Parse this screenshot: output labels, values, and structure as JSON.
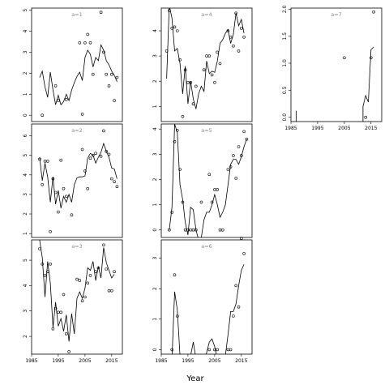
{
  "figure": {
    "xlabel": "Year"
  },
  "chart_data": [
    {
      "type": "scatter",
      "panel_label": "a=1",
      "xlim": [
        1985,
        2019
      ],
      "ylim": [
        -0.3,
        5.1
      ],
      "yticks": [
        0,
        1,
        2,
        3,
        4,
        5
      ],
      "xticks": [
        1985,
        1995,
        2005,
        2015
      ],
      "points": [
        [
          1989,
          0
        ],
        [
          1994,
          1.4
        ],
        [
          1995,
          0.7
        ],
        [
          1998,
          0.75
        ],
        [
          2003,
          3.45
        ],
        [
          2004,
          0.05
        ],
        [
          2005,
          3.45
        ],
        [
          2006,
          3.85
        ],
        [
          2007,
          3.45
        ],
        [
          2008,
          1.95
        ],
        [
          2011,
          4.9
        ],
        [
          2012,
          3.0
        ],
        [
          2013,
          1.95
        ],
        [
          2014,
          1.4
        ],
        [
          2015,
          1.95
        ],
        [
          2016,
          0.7
        ],
        [
          2017,
          1.8
        ]
      ],
      "line": [
        [
          1988,
          1.8
        ],
        [
          1989,
          2.1
        ],
        [
          1990,
          1.35
        ],
        [
          1991,
          0.85
        ],
        [
          1992,
          2.05
        ],
        [
          1993,
          1.2
        ],
        [
          1994,
          0.5
        ],
        [
          1995,
          0.95
        ],
        [
          1996,
          0.5
        ],
        [
          1997,
          0.65
        ],
        [
          1998,
          1.0
        ],
        [
          1999,
          0.7
        ],
        [
          2000,
          1.2
        ],
        [
          2001,
          1.55
        ],
        [
          2002,
          1.85
        ],
        [
          2003,
          2.05
        ],
        [
          2004,
          1.65
        ],
        [
          2005,
          2.75
        ],
        [
          2006,
          3.1
        ],
        [
          2007,
          2.9
        ],
        [
          2008,
          2.3
        ],
        [
          2009,
          2.75
        ],
        [
          2010,
          2.6
        ],
        [
          2011,
          3.35
        ],
        [
          2012,
          3.1
        ],
        [
          2013,
          2.6
        ],
        [
          2014,
          2.4
        ],
        [
          2015,
          2.1
        ],
        [
          2016,
          1.9
        ],
        [
          2017,
          1.6
        ]
      ]
    },
    {
      "type": "scatter",
      "panel_label": "a=2",
      "xlim": [
        1985,
        2019
      ],
      "ylim": [
        0.8,
        6.6
      ],
      "yticks": [
        1,
        2,
        3,
        4,
        5,
        6
      ],
      "xticks": [
        1985,
        1995,
        2005,
        2015
      ],
      "points": [
        [
          1988,
          4.8
        ],
        [
          1989,
          3.5
        ],
        [
          1990,
          4.7
        ],
        [
          1991,
          4.7
        ],
        [
          1992,
          1.1
        ],
        [
          1993,
          3.8
        ],
        [
          1994,
          3.1
        ],
        [
          1995,
          2.1
        ],
        [
          1996,
          4.75
        ],
        [
          1997,
          3.3
        ],
        [
          1998,
          2.9
        ],
        [
          2000,
          1.95
        ],
        [
          2004,
          5.3
        ],
        [
          2005,
          4.2
        ],
        [
          2006,
          3.3
        ],
        [
          2007,
          4.85
        ],
        [
          2008,
          5.0
        ],
        [
          2009,
          5.1
        ],
        [
          2011,
          4.95
        ],
        [
          2012,
          6.25
        ],
        [
          2013,
          5.2
        ],
        [
          2014,
          5.05
        ],
        [
          2015,
          3.8
        ],
        [
          2016,
          3.65
        ],
        [
          2017,
          3.4
        ]
      ],
      "line": [
        [
          1988,
          4.9
        ],
        [
          1989,
          3.7
        ],
        [
          1990,
          4.6
        ],
        [
          1991,
          3.9
        ],
        [
          1992,
          2.6
        ],
        [
          1993,
          3.9
        ],
        [
          1994,
          2.5
        ],
        [
          1995,
          3.2
        ],
        [
          1996,
          2.3
        ],
        [
          1997,
          2.9
        ],
        [
          1998,
          2.6
        ],
        [
          1999,
          3.0
        ],
        [
          2000,
          2.6
        ],
        [
          2001,
          3.5
        ],
        [
          2002,
          3.85
        ],
        [
          2003,
          3.9
        ],
        [
          2004,
          3.9
        ],
        [
          2005,
          3.95
        ],
        [
          2006,
          4.85
        ],
        [
          2007,
          5.1
        ],
        [
          2008,
          5.0
        ],
        [
          2009,
          4.6
        ],
        [
          2010,
          4.9
        ],
        [
          2011,
          5.15
        ],
        [
          2012,
          5.6
        ],
        [
          2013,
          5.2
        ],
        [
          2014,
          4.9
        ],
        [
          2015,
          4.35
        ],
        [
          2016,
          4.3
        ],
        [
          2017,
          3.8
        ]
      ]
    },
    {
      "type": "scatter",
      "panel_label": "a=3",
      "xlim": [
        1985,
        2019
      ],
      "ylim": [
        1.3,
        5.8
      ],
      "yticks": [
        2,
        3,
        4,
        5
      ],
      "xticks": [
        1985,
        1995,
        2005,
        2015
      ],
      "points": [
        [
          1988,
          5.45
        ],
        [
          1989,
          4.85
        ],
        [
          1990,
          4.4
        ],
        [
          1991,
          4.55
        ],
        [
          1992,
          4.85
        ],
        [
          1993,
          2.3
        ],
        [
          1994,
          3.1
        ],
        [
          1995,
          2.95
        ],
        [
          1996,
          2.95
        ],
        [
          1997,
          3.65
        ],
        [
          1998,
          2.1
        ],
        [
          1999,
          1.4
        ],
        [
          2002,
          4.25
        ],
        [
          2003,
          4.2
        ],
        [
          2004,
          3.4
        ],
        [
          2005,
          3.55
        ],
        [
          2006,
          4.1
        ],
        [
          2007,
          4.4
        ],
        [
          2009,
          4.55
        ],
        [
          2010,
          4.7
        ],
        [
          2012,
          5.6
        ],
        [
          2013,
          4.65
        ],
        [
          2014,
          3.8
        ],
        [
          2015,
          3.8
        ],
        [
          2016,
          4.55
        ]
      ],
      "line": [
        [
          1988,
          5.8
        ],
        [
          1989,
          5.1
        ],
        [
          1990,
          3.55
        ],
        [
          1991,
          4.95
        ],
        [
          1992,
          4.1
        ],
        [
          1993,
          2.35
        ],
        [
          1994,
          3.35
        ],
        [
          1995,
          2.4
        ],
        [
          1996,
          2.7
        ],
        [
          1997,
          2.2
        ],
        [
          1998,
          2.85
        ],
        [
          1999,
          1.8
        ],
        [
          2000,
          2.9
        ],
        [
          2001,
          2.1
        ],
        [
          2002,
          3.5
        ],
        [
          2003,
          3.75
        ],
        [
          2004,
          3.5
        ],
        [
          2005,
          3.9
        ],
        [
          2006,
          4.7
        ],
        [
          2007,
          4.6
        ],
        [
          2008,
          4.95
        ],
        [
          2009,
          4.2
        ],
        [
          2010,
          4.75
        ],
        [
          2011,
          4.3
        ],
        [
          2012,
          5.5
        ],
        [
          2013,
          4.9
        ],
        [
          2014,
          4.6
        ],
        [
          2015,
          4.3
        ],
        [
          2016,
          4.45
        ]
      ]
    },
    {
      "type": "scatter",
      "panel_label": "a=4",
      "xlim": [
        1985,
        2019
      ],
      "ylim": [
        0.4,
        4.9
      ],
      "yticks": [
        1,
        2,
        3,
        4
      ],
      "xticks": [
        1985,
        1995,
        2005,
        2015
      ],
      "points": [
        [
          1987,
          3.2
        ],
        [
          1988,
          4.8
        ],
        [
          1989,
          4.1
        ],
        [
          1990,
          4.15
        ],
        [
          1991,
          4.0
        ],
        [
          1992,
          2.85
        ],
        [
          1993,
          0.6
        ],
        [
          1994,
          2.45
        ],
        [
          1995,
          1.95
        ],
        [
          1996,
          1.95
        ],
        [
          1997,
          1.1
        ],
        [
          1998,
          1.8
        ],
        [
          2001,
          2.45
        ],
        [
          2002,
          3.0
        ],
        [
          2003,
          3.0
        ],
        [
          2004,
          2.25
        ],
        [
          2005,
          1.95
        ],
        [
          2006,
          3.15
        ],
        [
          2007,
          2.7
        ],
        [
          2010,
          4.0
        ],
        [
          2011,
          3.75
        ],
        [
          2012,
          3.4
        ],
        [
          2013,
          4.7
        ],
        [
          2014,
          3.2
        ],
        [
          2015,
          4.1
        ],
        [
          2016,
          3.75
        ]
      ],
      "line": [
        [
          1987,
          2.1
        ],
        [
          1988,
          5.0
        ],
        [
          1989,
          4.5
        ],
        [
          1990,
          3.2
        ],
        [
          1991,
          3.3
        ],
        [
          1992,
          2.7
        ],
        [
          1993,
          1.5
        ],
        [
          1994,
          2.6
        ],
        [
          1995,
          1.1
        ],
        [
          1996,
          2.0
        ],
        [
          1997,
          1.3
        ],
        [
          1998,
          0.9
        ],
        [
          1999,
          1.5
        ],
        [
          2000,
          1.8
        ],
        [
          2001,
          1.6
        ],
        [
          2002,
          2.8
        ],
        [
          2003,
          2.3
        ],
        [
          2004,
          2.4
        ],
        [
          2005,
          2.35
        ],
        [
          2006,
          2.8
        ],
        [
          2007,
          3.5
        ],
        [
          2008,
          3.65
        ],
        [
          2009,
          3.9
        ],
        [
          2010,
          4.05
        ],
        [
          2011,
          3.5
        ],
        [
          2012,
          3.85
        ],
        [
          2013,
          4.7
        ],
        [
          2014,
          4.2
        ],
        [
          2015,
          4.45
        ],
        [
          2016,
          3.9
        ]
      ]
    },
    {
      "type": "scatter",
      "panel_label": "a=5",
      "xlim": [
        1985,
        2019
      ],
      "ylim": [
        -0.3,
        4.2
      ],
      "yticks": [
        0,
        1,
        2,
        3,
        4
      ],
      "xticks": [
        1985,
        1995,
        2005,
        2015
      ],
      "points": [
        [
          1988,
          0
        ],
        [
          1989,
          0.7
        ],
        [
          1990,
          3.5
        ],
        [
          1991,
          3.95
        ],
        [
          1992,
          2.4
        ],
        [
          1993,
          1.1
        ],
        [
          1994,
          0
        ],
        [
          1995,
          0
        ],
        [
          1996,
          0
        ],
        [
          1997,
          0
        ],
        [
          1998,
          0
        ],
        [
          2000,
          1.1
        ],
        [
          2003,
          2.2
        ],
        [
          2004,
          1.1
        ],
        [
          2005,
          1.6
        ],
        [
          2006,
          1.6
        ],
        [
          2007,
          0
        ],
        [
          2008,
          0
        ],
        [
          2010,
          2.4
        ],
        [
          2011,
          2.5
        ],
        [
          2012,
          2.95
        ],
        [
          2013,
          2.05
        ],
        [
          2014,
          3.3
        ],
        [
          2015,
          2.95
        ],
        [
          2016,
          3.9
        ],
        [
          2017,
          3.6
        ]
      ],
      "line": [
        [
          1988,
          0
        ],
        [
          1989,
          0.9
        ],
        [
          1990,
          4.2
        ],
        [
          1991,
          3.85
        ],
        [
          1992,
          1.8
        ],
        [
          1993,
          1.2
        ],
        [
          1994,
          0.3
        ],
        [
          1995,
          -0.2
        ],
        [
          1996,
          0.9
        ],
        [
          1997,
          0.8
        ],
        [
          1998,
          0
        ],
        [
          1999,
          -0.4
        ],
        [
          2000,
          -0.3
        ],
        [
          2001,
          0.4
        ],
        [
          2002,
          0.7
        ],
        [
          2003,
          0.7
        ],
        [
          2004,
          1.0
        ],
        [
          2005,
          1.4
        ],
        [
          2006,
          1.0
        ],
        [
          2007,
          0.5
        ],
        [
          2008,
          0.7
        ],
        [
          2009,
          1.0
        ],
        [
          2010,
          1.8
        ],
        [
          2011,
          2.6
        ],
        [
          2012,
          2.8
        ],
        [
          2013,
          2.8
        ],
        [
          2014,
          2.6
        ],
        [
          2015,
          2.9
        ],
        [
          2016,
          3.3
        ],
        [
          2017,
          3.6
        ]
      ]
    },
    {
      "type": "scatter",
      "panel_label": "a=6",
      "xlim": [
        1985,
        2019
      ],
      "ylim": [
        -0.15,
        3.6
      ],
      "yticks": [
        0,
        1,
        2,
        3
      ],
      "xticks": [
        1985,
        1995,
        2005,
        2015
      ],
      "points": [
        [
          1989,
          0
        ],
        [
          1990,
          2.45
        ],
        [
          1991,
          1.1
        ],
        [
          2003,
          0
        ],
        [
          2005,
          0
        ],
        [
          2006,
          0
        ],
        [
          2010,
          0
        ],
        [
          2011,
          0
        ],
        [
          2012,
          1.1
        ],
        [
          2013,
          2.1
        ],
        [
          2014,
          1.4
        ],
        [
          2015,
          3.65
        ],
        [
          2016,
          3.15
        ]
      ],
      "line": [
        [
          1988,
          -0.3
        ],
        [
          1989,
          -0.3
        ],
        [
          1990,
          1.9
        ],
        [
          1991,
          1.3
        ],
        [
          1992,
          -0.2
        ],
        [
          1993,
          -0.3
        ],
        [
          1994,
          -0.3
        ],
        [
          1995,
          -0.3
        ],
        [
          1996,
          -0.2
        ],
        [
          1997,
          0.25
        ],
        [
          1998,
          -0.3
        ],
        [
          1999,
          -0.4
        ],
        [
          2000,
          -0.4
        ],
        [
          2001,
          -0.3
        ],
        [
          2002,
          -0.1
        ],
        [
          2003,
          0.25
        ],
        [
          2004,
          0.35
        ],
        [
          2005,
          0.1
        ],
        [
          2006,
          -0.3
        ],
        [
          2007,
          -0.3
        ],
        [
          2008,
          -0.3
        ],
        [
          2009,
          -0.2
        ],
        [
          2010,
          0.5
        ],
        [
          2011,
          1.25
        ],
        [
          2012,
          1.25
        ],
        [
          2013,
          1.5
        ],
        [
          2014,
          2.1
        ],
        [
          2015,
          2.6
        ],
        [
          2016,
          2.8
        ]
      ]
    },
    {
      "type": "scatter",
      "panel_label": "a=7",
      "xlim": [
        1985,
        2019
      ],
      "ylim": [
        -0.08,
        2.02
      ],
      "yticks": [
        0.0,
        0.5,
        1.0,
        1.5,
        2.0
      ],
      "xticks": [
        1985,
        1995,
        2005,
        2015
      ],
      "points": [
        [
          2005,
          1.1
        ],
        [
          2013,
          0
        ],
        [
          2015,
          1.1
        ],
        [
          2016,
          1.95
        ]
      ],
      "line": [
        [
          1987,
          0.12
        ],
        [
          1987,
          -0.2
        ],
        [
          2012,
          -0.3
        ],
        [
          2012,
          0.2
        ],
        [
          2013,
          0.4
        ],
        [
          2014,
          0.28
        ],
        [
          2015,
          1.25
        ],
        [
          2016,
          1.3
        ]
      ]
    }
  ]
}
